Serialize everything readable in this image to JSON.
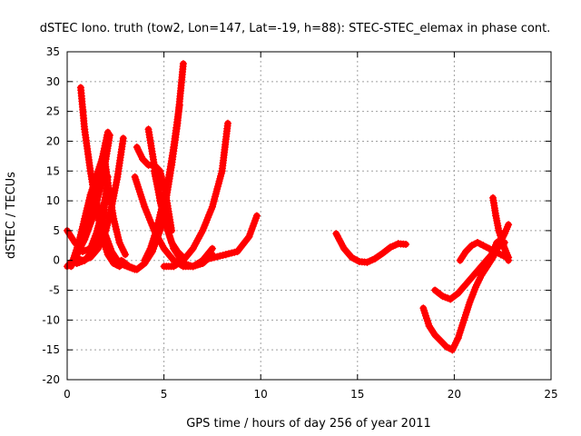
{
  "chart_data": {
    "type": "scatter",
    "title": "dSTEC Iono. truth (tow2, Lon=147, Lat=-19, h=88): STEC-STEC_elemax in phase cont.",
    "xlabel": "GPS time / hours of day 256 of year 2011",
    "ylabel": "dSTEC  / TECUs",
    "xlim": [
      0,
      25
    ],
    "ylim": [
      -20,
      35
    ],
    "xticks": [
      0,
      5,
      10,
      15,
      20,
      25
    ],
    "yticks": [
      -20,
      -15,
      -10,
      -5,
      0,
      5,
      10,
      15,
      20,
      25,
      30,
      35
    ],
    "grid": true,
    "marker": "plus",
    "color": "#ff0000",
    "series": [
      {
        "x": [
          0.0,
          0.3,
          0.6,
          0.9,
          1.2,
          1.5,
          1.8,
          2.1
        ],
        "y": [
          -1.0,
          0.0,
          1.5,
          4.0,
          7.5,
          11.0,
          15.0,
          19.5
        ]
      },
      {
        "x": [
          0.0,
          0.4,
          0.8,
          1.2,
          1.5,
          1.8,
          2.0
        ],
        "y": [
          5.0,
          3.0,
          1.5,
          2.0,
          4.5,
          8.0,
          11.0
        ]
      },
      {
        "x": [
          0.2,
          0.5,
          0.9,
          1.3,
          1.7,
          2.0,
          2.2
        ],
        "y": [
          -1.0,
          1.0,
          3.5,
          7.0,
          12.0,
          17.0,
          21.0
        ]
      },
      {
        "x": [
          0.3,
          0.6,
          0.9,
          1.2,
          1.5,
          1.8,
          2.1
        ],
        "y": [
          0.0,
          3.0,
          7.0,
          11.0,
          14.0,
          17.0,
          21.5
        ]
      },
      {
        "x": [
          0.7,
          0.9,
          1.2,
          1.5,
          1.8,
          2.1,
          2.4,
          2.7
        ],
        "y": [
          29.0,
          22.0,
          15.0,
          9.0,
          4.0,
          1.0,
          -0.5,
          -1.0
        ]
      },
      {
        "x": [
          1.9,
          2.1,
          2.4,
          2.7,
          3.0
        ],
        "y": [
          18.0,
          13.0,
          7.0,
          3.0,
          1.0
        ]
      },
      {
        "x": [
          0.5,
          0.9,
          1.3,
          1.6,
          1.9,
          2.1
        ],
        "y": [
          -0.5,
          0.0,
          1.5,
          4.0,
          8.0,
          14.0
        ]
      },
      {
        "x": [
          0.4,
          0.8,
          1.2,
          1.6,
          2.0,
          2.3,
          2.6,
          2.9
        ],
        "y": [
          0.5,
          0.0,
          0.5,
          2.0,
          5.0,
          9.0,
          14.0,
          20.5
        ]
      },
      {
        "x": [
          1.5,
          1.9,
          2.3,
          2.7,
          3.1,
          3.5
        ],
        "y": [
          10.0,
          5.0,
          1.5,
          -0.5,
          -1.0,
          -1.5
        ]
      },
      {
        "x": [
          2.8,
          3.2,
          3.6,
          4.0,
          4.4,
          4.8,
          5.1,
          5.4,
          5.7,
          6.0
        ],
        "y": [
          0.0,
          -1.0,
          -1.5,
          -0.5,
          1.5,
          5.0,
          10.0,
          16.0,
          23.0,
          33.0
        ]
      },
      {
        "x": [
          4.0,
          4.3,
          4.6,
          4.9,
          5.2,
          5.5,
          5.8
        ],
        "y": [
          0.0,
          2.0,
          5.0,
          9.0,
          13.0,
          19.0,
          26.0
        ]
      },
      {
        "x": [
          3.5,
          4.0,
          4.5,
          5.0,
          5.5,
          6.0,
          6.5,
          7.0,
          7.5
        ],
        "y": [
          14.0,
          9.0,
          5.0,
          2.0,
          0.0,
          -1.0,
          -1.0,
          0.0,
          2.0
        ]
      },
      {
        "x": [
          3.6,
          3.9,
          4.2,
          4.5,
          4.8,
          5.1,
          5.4
        ],
        "y": [
          19.0,
          17.0,
          16.0,
          16.0,
          15.0,
          11.0,
          5.0
        ]
      },
      {
        "x": [
          4.2,
          4.5,
          4.8,
          5.1,
          5.4,
          5.7,
          6.0
        ],
        "y": [
          22.0,
          16.0,
          10.0,
          6.0,
          3.0,
          1.5,
          0.5
        ]
      },
      {
        "x": [
          5.0,
          5.5,
          6.0,
          6.5,
          7.0,
          7.5,
          8.0,
          8.3
        ],
        "y": [
          -1.0,
          -1.0,
          0.0,
          2.0,
          5.0,
          9.0,
          15.0,
          23.0
        ]
      },
      {
        "x": [
          4.5,
          5.0,
          5.5,
          6.0,
          6.5,
          7.0,
          7.5
        ],
        "y": [
          15.0,
          7.0,
          2.0,
          -0.5,
          -1.0,
          -0.5,
          1.0
        ]
      },
      {
        "x": [
          7.0,
          7.6,
          8.2,
          8.8,
          9.4,
          9.8
        ],
        "y": [
          0.0,
          0.5,
          1.0,
          1.5,
          4.0,
          7.5
        ]
      },
      {
        "x": [
          13.9,
          14.3,
          14.7,
          15.1,
          15.5,
          15.9,
          16.3,
          16.7,
          17.1,
          17.5
        ],
        "y": [
          4.5,
          2.0,
          0.5,
          -0.2,
          -0.3,
          0.3,
          1.2,
          2.2,
          2.8,
          2.7
        ]
      },
      {
        "x": [
          18.4,
          18.7,
          19.0,
          19.3,
          19.6,
          19.9,
          20.2,
          20.5,
          20.8,
          21.1,
          21.4,
          21.7,
          22.0,
          22.3,
          22.6,
          22.8
        ],
        "y": [
          -8.0,
          -11.0,
          -12.5,
          -13.5,
          -14.5,
          -15.0,
          -13.0,
          -10.0,
          -7.0,
          -4.5,
          -2.5,
          -1.0,
          0.5,
          2.5,
          4.5,
          6.0
        ]
      },
      {
        "x": [
          19.0,
          19.4,
          19.8,
          20.2,
          20.6,
          21.0,
          21.4,
          21.8,
          22.2,
          22.6
        ],
        "y": [
          -5.0,
          -6.0,
          -6.5,
          -5.5,
          -4.0,
          -2.5,
          -1.0,
          0.5,
          2.0,
          3.0
        ]
      },
      {
        "x": [
          20.3,
          20.6,
          20.9,
          21.2,
          21.5,
          21.8,
          22.1,
          22.4,
          22.7
        ],
        "y": [
          0.0,
          1.5,
          2.5,
          3.0,
          2.5,
          2.0,
          1.5,
          1.0,
          0.5
        ]
      },
      {
        "x": [
          22.0,
          22.15,
          22.3,
          22.5,
          22.7,
          22.8
        ],
        "y": [
          10.5,
          7.5,
          5.0,
          3.0,
          1.0,
          0.0
        ]
      },
      {
        "x": [
          21.8,
          22.0,
          22.2,
          22.4,
          22.6,
          22.8
        ],
        "y": [
          0.0,
          1.5,
          3.0,
          3.5,
          2.0,
          0.5
        ]
      }
    ]
  }
}
